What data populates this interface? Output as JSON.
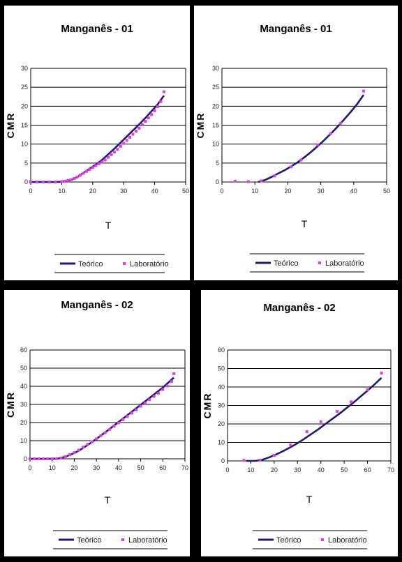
{
  "chart_data": [
    {
      "type": "line",
      "title": "Manganês - 01",
      "xlabel": "T",
      "ylabel": "CMR",
      "xlim": [
        0,
        50
      ],
      "ylim": [
        0,
        30
      ],
      "xticks": [
        "0",
        "10",
        "20",
        "30",
        "40",
        "50"
      ],
      "yticks": [
        "0",
        "5",
        "10",
        "15",
        "20",
        "25",
        "30"
      ],
      "grid": "horizontal",
      "legend_position": "bottom",
      "series": [
        {
          "name": "Teórico",
          "style": "line",
          "color": "#1a1a6e",
          "x": [
            0,
            4,
            8,
            11,
            13,
            15,
            17,
            19,
            21,
            23,
            25,
            27,
            29,
            31,
            33,
            35,
            37,
            39,
            41,
            43
          ],
          "y": [
            0,
            0,
            0,
            0.1,
            0.5,
            1.3,
            2.4,
            3.5,
            4.6,
            5.8,
            7.3,
            8.8,
            10.4,
            12,
            13.6,
            15.2,
            16.9,
            18.7,
            20.5,
            22.8
          ]
        },
        {
          "name": "Laboratório",
          "style": "marker",
          "color": "#e040e0",
          "x": [
            0,
            2,
            4,
            6,
            8,
            10,
            11,
            12,
            13,
            14,
            15,
            16,
            17,
            18,
            19,
            20,
            21,
            22,
            23,
            24,
            25,
            26,
            27,
            28,
            29,
            30,
            31,
            32,
            33,
            34,
            35,
            36,
            37,
            38,
            39,
            40,
            41,
            42,
            43
          ],
          "y": [
            0,
            0,
            0,
            0,
            0,
            0.1,
            0.2,
            0.4,
            0.6,
            0.9,
            1.3,
            1.8,
            2.3,
            2.8,
            3.3,
            3.8,
            4.3,
            4.8,
            5.3,
            5.8,
            6.5,
            7.2,
            7.9,
            8.6,
            9.4,
            10.2,
            11,
            11.8,
            12.6,
            13.4,
            14.2,
            15.1,
            16,
            16.9,
            17.8,
            18.8,
            19.9,
            21.2,
            23.8
          ]
        }
      ]
    },
    {
      "type": "line",
      "title": "Manganês - 01",
      "xlabel": "T",
      "ylabel": "CMR",
      "xlim": [
        0,
        50
      ],
      "ylim": [
        0,
        30
      ],
      "xticks": [
        "0",
        "10",
        "20",
        "30",
        "40",
        "50"
      ],
      "yticks": [
        "0",
        "5",
        "10",
        "15",
        "20",
        "25",
        "30"
      ],
      "grid": "horizontal",
      "legend_position": "bottom",
      "series": [
        {
          "name": "Teórico",
          "style": "line",
          "color": "#1a1a6e",
          "x": [
            11,
            13,
            15,
            17,
            19,
            21,
            23,
            25,
            27,
            29,
            31,
            33,
            35,
            37,
            39,
            41,
            43
          ],
          "y": [
            0,
            0.5,
            1.3,
            2.2,
            3.1,
            4.1,
            5.2,
            6.5,
            7.9,
            9.4,
            11,
            12.7,
            14.5,
            16.4,
            18.4,
            20.5,
            23
          ]
        },
        {
          "name": "Laboratório",
          "style": "marker",
          "color": "#e040e0",
          "x": [
            4,
            8,
            12,
            16,
            21,
            24,
            29,
            33,
            36,
            43
          ],
          "y": [
            0.2,
            0.1,
            0.3,
            1.6,
            4,
            5.8,
            9.8,
            12.8,
            15.5,
            24
          ]
        }
      ]
    },
    {
      "type": "line",
      "title": "Manganês - 02",
      "xlabel": "T",
      "ylabel": "CMR",
      "xlim": [
        0,
        70
      ],
      "ylim": [
        0,
        60
      ],
      "xticks": [
        "0",
        "10",
        "20",
        "30",
        "40",
        "50",
        "60",
        "70"
      ],
      "yticks": [
        "0",
        "10",
        "20",
        "30",
        "40",
        "50",
        "60"
      ],
      "grid": "horizontal",
      "legend_position": "bottom",
      "series": [
        {
          "name": "Teórico",
          "style": "line",
          "color": "#1a1a6e",
          "x": [
            0,
            5,
            10,
            13,
            15,
            17,
            19,
            21,
            23,
            25,
            27,
            30,
            35,
            40,
            45,
            50,
            55,
            60,
            65
          ],
          "y": [
            0,
            0,
            0,
            0.2,
            0.8,
            1.6,
            2.6,
            3.8,
            5.2,
            6.8,
            8.4,
            11,
            15.5,
            20.3,
            25,
            29.8,
            34.5,
            39.3,
            44.8
          ]
        },
        {
          "name": "Laboratório",
          "style": "marker",
          "color": "#e040e0",
          "x": [
            0,
            2,
            4,
            6,
            8,
            10,
            12,
            14,
            16,
            18,
            20,
            22,
            24,
            26,
            28,
            30,
            32,
            34,
            36,
            38,
            40,
            42,
            44,
            46,
            48,
            50,
            52,
            54,
            56,
            58,
            60,
            62,
            64,
            65
          ],
          "y": [
            0,
            0,
            0,
            0,
            0,
            0,
            0.1,
            0.4,
            1.2,
            2.2,
            3.4,
            4.8,
            6.4,
            8,
            9.4,
            11,
            12.8,
            14.4,
            16.2,
            18,
            19.8,
            21.6,
            23.4,
            25.2,
            27,
            29,
            30.8,
            32.6,
            34.4,
            36.2,
            38.2,
            40.2,
            42.6,
            47
          ]
        }
      ]
    },
    {
      "type": "line",
      "title": "Manganês - 02",
      "xlabel": "T",
      "ylabel": "CMR",
      "xlim": [
        0,
        70
      ],
      "ylim": [
        0,
        60
      ],
      "xticks": [
        "0",
        "10",
        "20",
        "30",
        "40",
        "50",
        "60",
        "70"
      ],
      "yticks": [
        "0",
        "10",
        "20",
        "30",
        "40",
        "50",
        "60"
      ],
      "grid": "horizontal",
      "legend_position": "bottom",
      "series": [
        {
          "name": "Teórico",
          "style": "line",
          "color": "#1a1a6e",
          "x": [
            8,
            12,
            15,
            18,
            21,
            24,
            27,
            30,
            33,
            36,
            39,
            42,
            45,
            48,
            51,
            54,
            57,
            60,
            63,
            66
          ],
          "y": [
            0,
            0,
            0.6,
            2,
            3.6,
            5.4,
            7.4,
            9.6,
            12,
            14.6,
            17.2,
            20,
            22.8,
            25.6,
            28.6,
            31.6,
            34.8,
            38,
            41.4,
            45
          ]
        },
        {
          "name": "Laboratório",
          "style": "marker",
          "color": "#e040e0",
          "x": [
            7,
            14,
            20,
            27,
            34,
            40,
            47,
            53,
            60,
            66
          ],
          "y": [
            0.3,
            0.4,
            3,
            8.6,
            15.8,
            21.2,
            26.8,
            32,
            38.5,
            47.5
          ]
        }
      ]
    }
  ]
}
